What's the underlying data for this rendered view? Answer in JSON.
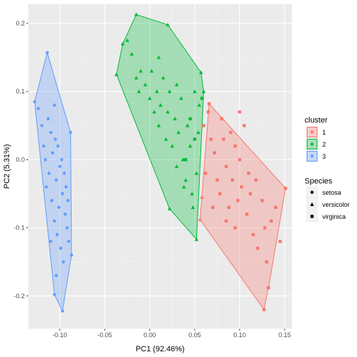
{
  "chart_data": {
    "type": "scatter",
    "xlabel": "PC1 (92.46%)",
    "ylabel": "PC2 (5.31%)",
    "xlim": [
      -0.135,
      0.158
    ],
    "ylim": [
      -0.248,
      0.228
    ],
    "x_ticks": [
      -0.1,
      -0.05,
      0.0,
      0.05,
      0.1,
      0.15
    ],
    "x_tick_labels": [
      "-0.10",
      "-0.05",
      "0.00",
      "0.05",
      "0.10",
      "0.15"
    ],
    "y_ticks": [
      -0.2,
      -0.1,
      0.0,
      0.1,
      0.2
    ],
    "y_tick_labels": [
      "-0.2",
      "-0.1",
      "0.0",
      "0.1",
      "0.2"
    ],
    "grid": true,
    "legend_position": "right",
    "cluster_legend": {
      "title": "cluster",
      "items": [
        {
          "label": "1",
          "color": "#F8766D"
        },
        {
          "label": "2",
          "color": "#00BA38"
        },
        {
          "label": "3",
          "color": "#619CFF"
        }
      ]
    },
    "species_legend": {
      "title": "Species",
      "items": [
        {
          "label": "setosa",
          "shape": "circle"
        },
        {
          "label": "versicolor",
          "shape": "triangle"
        },
        {
          "label": "virginica",
          "shape": "square"
        }
      ]
    },
    "clusters": [
      {
        "name": "1",
        "color": "#F8766D",
        "hull": [
          [
            0.066,
            0.082
          ],
          [
            0.151,
            -0.042
          ],
          [
            0.132,
            -0.188
          ],
          [
            0.127,
            -0.22
          ],
          [
            0.056,
            -0.088
          ],
          [
            0.058,
            -0.055
          ]
        ],
        "points": [
          {
            "x": 0.06,
            "y": 0.05,
            "species": "virginica"
          },
          {
            "x": 0.062,
            "y": -0.02,
            "species": "virginica"
          },
          {
            "x": 0.068,
            "y": 0.03,
            "species": "virginica"
          },
          {
            "x": 0.072,
            "y": 0.01,
            "species": "virginica"
          },
          {
            "x": 0.075,
            "y": -0.03,
            "species": "virginica"
          },
          {
            "x": 0.078,
            "y": -0.05,
            "species": "virginica"
          },
          {
            "x": 0.08,
            "y": 0.06,
            "species": "virginica"
          },
          {
            "x": 0.082,
            "y": 0.03,
            "species": "virginica"
          },
          {
            "x": 0.085,
            "y": -0.01,
            "species": "virginica"
          },
          {
            "x": 0.088,
            "y": -0.07,
            "species": "virginica"
          },
          {
            "x": 0.09,
            "y": 0.04,
            "species": "virginica"
          },
          {
            "x": 0.092,
            "y": -0.03,
            "species": "virginica"
          },
          {
            "x": 0.095,
            "y": 0.02,
            "species": "virginica"
          },
          {
            "x": 0.098,
            "y": -0.06,
            "species": "virginica"
          },
          {
            "x": 0.1,
            "y": 0.0,
            "species": "virginica"
          },
          {
            "x": 0.102,
            "y": -0.04,
            "species": "virginica"
          },
          {
            "x": 0.105,
            "y": 0.05,
            "species": "virginica"
          },
          {
            "x": 0.108,
            "y": -0.08,
            "species": "virginica"
          },
          {
            "x": 0.11,
            "y": -0.02,
            "species": "virginica"
          },
          {
            "x": 0.112,
            "y": -0.05,
            "species": "virginica"
          },
          {
            "x": 0.115,
            "y": -0.11,
            "species": "virginica"
          },
          {
            "x": 0.118,
            "y": -0.03,
            "species": "virginica"
          },
          {
            "x": 0.12,
            "y": -0.13,
            "species": "virginica"
          },
          {
            "x": 0.125,
            "y": -0.06,
            "species": "virginica"
          },
          {
            "x": 0.128,
            "y": -0.1,
            "species": "virginica"
          },
          {
            "x": 0.13,
            "y": -0.15,
            "species": "virginica"
          },
          {
            "x": 0.135,
            "y": -0.09,
            "species": "virginica"
          },
          {
            "x": 0.14,
            "y": -0.07,
            "species": "virginica"
          },
          {
            "x": 0.145,
            "y": -0.12,
            "species": "virginica"
          },
          {
            "x": 0.085,
            "y": -0.09,
            "species": "virginica"
          },
          {
            "x": 0.07,
            "y": -0.07,
            "species": "virginica"
          },
          {
            "x": 0.095,
            "y": -0.1,
            "species": "virginica"
          },
          {
            "x": 0.065,
            "y": 0.07,
            "species": "virginica"
          },
          {
            "x": 0.1,
            "y": 0.07,
            "species": "virginica"
          },
          {
            "x": 0.066,
            "y": 0.082,
            "species": "virginica"
          },
          {
            "x": 0.151,
            "y": -0.042,
            "species": "virginica"
          },
          {
            "x": 0.132,
            "y": -0.188,
            "species": "virginica"
          },
          {
            "x": 0.127,
            "y": -0.22,
            "species": "virginica"
          },
          {
            "x": 0.056,
            "y": -0.088,
            "species": "versicolor"
          },
          {
            "x": 0.058,
            "y": -0.055,
            "species": "versicolor"
          }
        ]
      },
      {
        "name": "2",
        "color": "#00BA38",
        "hull": [
          [
            -0.015,
            0.213
          ],
          [
            0.02,
            0.198
          ],
          [
            0.057,
            0.128
          ],
          [
            0.06,
            0.1
          ],
          [
            0.052,
            -0.117
          ],
          [
            0.022,
            -0.072
          ],
          [
            -0.037,
            0.125
          ],
          [
            -0.03,
            0.17
          ]
        ],
        "points": [
          {
            "x": -0.025,
            "y": 0.175,
            "species": "versicolor"
          },
          {
            "x": -0.02,
            "y": 0.155,
            "species": "versicolor"
          },
          {
            "x": -0.015,
            "y": 0.12,
            "species": "versicolor"
          },
          {
            "x": -0.012,
            "y": 0.1,
            "species": "versicolor"
          },
          {
            "x": -0.01,
            "y": 0.13,
            "species": "versicolor"
          },
          {
            "x": -0.005,
            "y": 0.11,
            "species": "versicolor"
          },
          {
            "x": 0.0,
            "y": 0.09,
            "species": "versicolor"
          },
          {
            "x": 0.002,
            "y": 0.13,
            "species": "versicolor"
          },
          {
            "x": 0.005,
            "y": 0.07,
            "species": "versicolor"
          },
          {
            "x": 0.008,
            "y": 0.1,
            "species": "versicolor"
          },
          {
            "x": 0.01,
            "y": 0.05,
            "species": "versicolor"
          },
          {
            "x": 0.012,
            "y": 0.08,
            "species": "versicolor"
          },
          {
            "x": 0.015,
            "y": 0.12,
            "species": "versicolor"
          },
          {
            "x": 0.018,
            "y": 0.03,
            "species": "versicolor"
          },
          {
            "x": 0.02,
            "y": 0.07,
            "species": "versicolor"
          },
          {
            "x": 0.022,
            "y": 0.1,
            "species": "versicolor"
          },
          {
            "x": 0.025,
            "y": 0.02,
            "species": "versicolor"
          },
          {
            "x": 0.028,
            "y": 0.06,
            "species": "versicolor"
          },
          {
            "x": 0.03,
            "y": -0.01,
            "species": "versicolor"
          },
          {
            "x": 0.032,
            "y": 0.04,
            "species": "versicolor"
          },
          {
            "x": 0.035,
            "y": 0.09,
            "species": "versicolor"
          },
          {
            "x": 0.037,
            "y": 0.0,
            "species": "versicolor"
          },
          {
            "x": 0.04,
            "y": -0.03,
            "species": "versicolor"
          },
          {
            "x": 0.042,
            "y": 0.05,
            "species": "versicolor"
          },
          {
            "x": 0.045,
            "y": 0.02,
            "species": "versicolor"
          },
          {
            "x": 0.047,
            "y": -0.05,
            "species": "versicolor"
          },
          {
            "x": 0.05,
            "y": 0.1,
            "species": "versicolor"
          },
          {
            "x": 0.052,
            "y": -0.02,
            "species": "versicolor"
          },
          {
            "x": 0.054,
            "y": 0.04,
            "species": "versicolor"
          },
          {
            "x": 0.055,
            "y": 0.08,
            "species": "versicolor"
          },
          {
            "x": 0.048,
            "y": -0.07,
            "species": "versicolor"
          },
          {
            "x": 0.038,
            "y": -0.04,
            "species": "versicolor"
          },
          {
            "x": 0.03,
            "y": 0.11,
            "species": "versicolor"
          },
          {
            "x": 0.01,
            "y": 0.15,
            "species": "versicolor"
          },
          {
            "x": -0.015,
            "y": 0.213,
            "species": "versicolor"
          },
          {
            "x": 0.02,
            "y": 0.198,
            "species": "versicolor"
          },
          {
            "x": 0.057,
            "y": 0.128,
            "species": "versicolor"
          },
          {
            "x": 0.06,
            "y": 0.1,
            "species": "versicolor"
          },
          {
            "x": 0.052,
            "y": -0.117,
            "species": "versicolor"
          },
          {
            "x": 0.022,
            "y": -0.072,
            "species": "versicolor"
          },
          {
            "x": -0.037,
            "y": 0.125,
            "species": "versicolor"
          },
          {
            "x": -0.03,
            "y": 0.17,
            "species": "versicolor"
          },
          {
            "x": 0.045,
            "y": 0.06,
            "species": "virginica"
          },
          {
            "x": 0.04,
            "y": 0.0,
            "species": "virginica"
          },
          {
            "x": 0.05,
            "y": 0.03,
            "species": "virginica"
          },
          {
            "x": 0.058,
            "y": 0.09,
            "species": "virginica"
          }
        ]
      },
      {
        "name": "3",
        "color": "#619CFF",
        "hull": [
          [
            -0.114,
            0.157
          ],
          [
            -0.088,
            0.04
          ],
          [
            -0.087,
            -0.14
          ],
          [
            -0.097,
            -0.222
          ],
          [
            -0.106,
            -0.198
          ],
          [
            -0.128,
            0.085
          ]
        ],
        "points": [
          {
            "x": -0.124,
            "y": 0.075,
            "species": "setosa"
          },
          {
            "x": -0.12,
            "y": 0.05,
            "species": "setosa"
          },
          {
            "x": -0.118,
            "y": 0.02,
            "species": "setosa"
          },
          {
            "x": -0.116,
            "y": 0.0,
            "species": "setosa"
          },
          {
            "x": -0.115,
            "y": -0.04,
            "species": "setosa"
          },
          {
            "x": -0.113,
            "y": 0.06,
            "species": "setosa"
          },
          {
            "x": -0.112,
            "y": -0.02,
            "species": "setosa"
          },
          {
            "x": -0.11,
            "y": 0.04,
            "species": "setosa"
          },
          {
            "x": -0.109,
            "y": -0.06,
            "species": "setosa"
          },
          {
            "x": -0.108,
            "y": 0.01,
            "species": "setosa"
          },
          {
            "x": -0.106,
            "y": -0.09,
            "species": "setosa"
          },
          {
            "x": -0.105,
            "y": 0.03,
            "species": "setosa"
          },
          {
            "x": -0.104,
            "y": -0.03,
            "species": "setosa"
          },
          {
            "x": -0.103,
            "y": -0.11,
            "species": "setosa"
          },
          {
            "x": -0.102,
            "y": 0.02,
            "species": "setosa"
          },
          {
            "x": -0.101,
            "y": -0.07,
            "species": "setosa"
          },
          {
            "x": -0.1,
            "y": -0.01,
            "species": "setosa"
          },
          {
            "x": -0.099,
            "y": -0.13,
            "species": "setosa"
          },
          {
            "x": -0.098,
            "y": 0.0,
            "species": "setosa"
          },
          {
            "x": -0.097,
            "y": -0.05,
            "species": "setosa"
          },
          {
            "x": -0.096,
            "y": -0.15,
            "species": "setosa"
          },
          {
            "x": -0.095,
            "y": -0.02,
            "species": "setosa"
          },
          {
            "x": -0.094,
            "y": -0.08,
            "species": "setosa"
          },
          {
            "x": -0.093,
            "y": -0.04,
            "species": "setosa"
          },
          {
            "x": -0.092,
            "y": -0.1,
            "species": "setosa"
          },
          {
            "x": -0.091,
            "y": -0.06,
            "species": "setosa"
          },
          {
            "x": -0.09,
            "y": -0.12,
            "species": "setosa"
          },
          {
            "x": -0.106,
            "y": 0.08,
            "species": "setosa"
          },
          {
            "x": -0.11,
            "y": -0.12,
            "species": "setosa"
          },
          {
            "x": -0.104,
            "y": -0.17,
            "species": "setosa"
          },
          {
            "x": -0.114,
            "y": 0.157,
            "species": "setosa"
          },
          {
            "x": -0.088,
            "y": 0.04,
            "species": "setosa"
          },
          {
            "x": -0.087,
            "y": -0.14,
            "species": "setosa"
          },
          {
            "x": -0.097,
            "y": -0.222,
            "species": "setosa"
          },
          {
            "x": -0.106,
            "y": -0.198,
            "species": "setosa"
          },
          {
            "x": -0.128,
            "y": 0.085,
            "species": "setosa"
          }
        ]
      }
    ]
  }
}
